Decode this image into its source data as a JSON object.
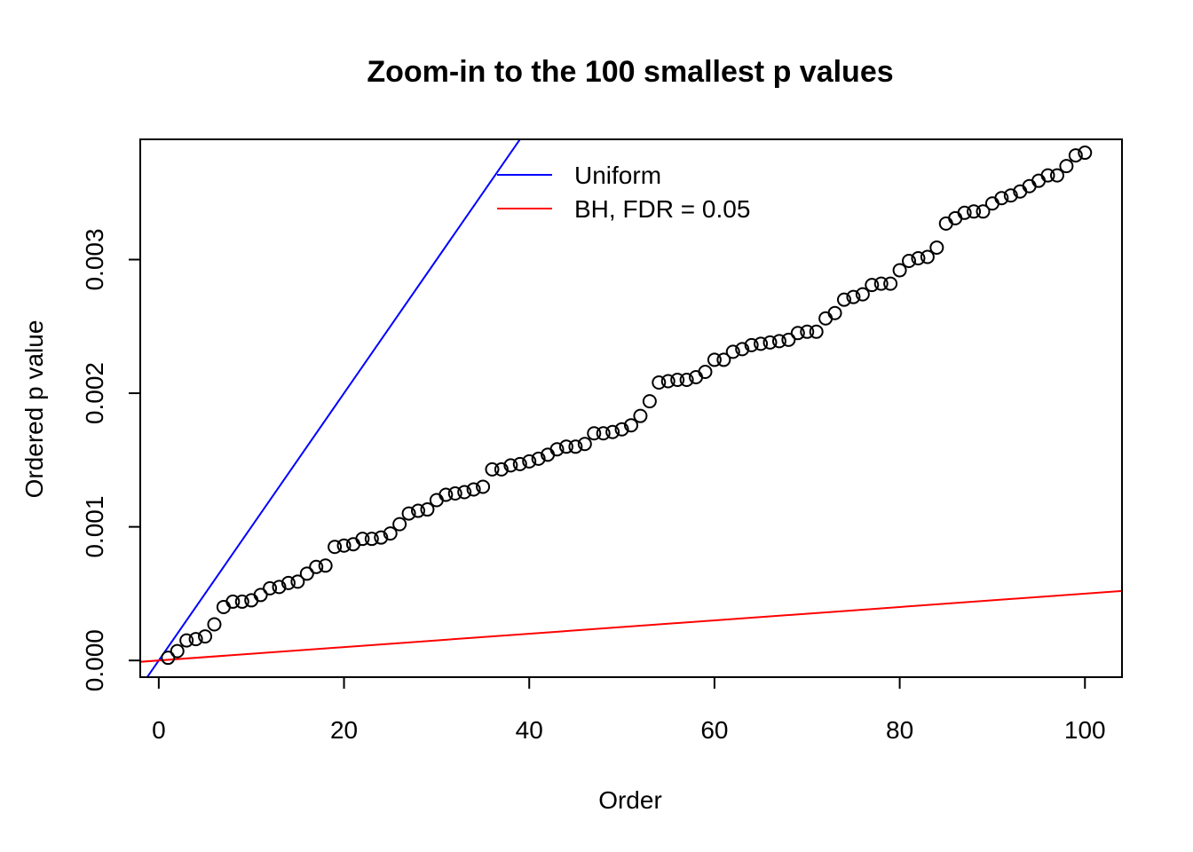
{
  "chart_data": {
    "type": "scatter",
    "title": "Zoom-in to the 100 smallest p values",
    "xlabel": "Order",
    "ylabel": "Ordered p value",
    "xlim": [
      -2,
      104
    ],
    "ylim": [
      -0.000125,
      0.0039
    ],
    "xticks": [
      0,
      20,
      40,
      60,
      80,
      100
    ],
    "xtick_labels": [
      "0",
      "20",
      "40",
      "60",
      "80",
      "100"
    ],
    "yticks": [
      0,
      0.001,
      0.002,
      0.003
    ],
    "ytick_labels": [
      "0.000",
      "0.001",
      "0.002",
      "0.003"
    ],
    "grid": false,
    "legend": {
      "position": "top-center",
      "entries": [
        {
          "label": "Uniform",
          "color": "#0000ff"
        },
        {
          "label": "BH, FDR = 0.05",
          "color": "#ff0000"
        }
      ]
    },
    "lines": [
      {
        "name": "Uniform",
        "color": "#0000ff",
        "slope": 0.0001,
        "intercept": 0
      },
      {
        "name": "BH, FDR = 0.05",
        "color": "#ff0000",
        "slope": 5e-06,
        "intercept": 0
      }
    ],
    "points": {
      "x": [
        1,
        2,
        3,
        4,
        5,
        6,
        7,
        8,
        9,
        10,
        11,
        12,
        13,
        14,
        15,
        16,
        17,
        18,
        19,
        20,
        21,
        22,
        23,
        24,
        25,
        26,
        27,
        28,
        29,
        30,
        31,
        32,
        33,
        34,
        35,
        36,
        37,
        38,
        39,
        40,
        41,
        42,
        43,
        44,
        45,
        46,
        47,
        48,
        49,
        50,
        51,
        52,
        53,
        54,
        55,
        56,
        57,
        58,
        59,
        60,
        61,
        62,
        63,
        64,
        65,
        66,
        67,
        68,
        69,
        70,
        71,
        72,
        73,
        74,
        75,
        76,
        77,
        78,
        79,
        80,
        81,
        82,
        83,
        84,
        85,
        86,
        87,
        88,
        89,
        90,
        91,
        92,
        93,
        94,
        95,
        96,
        97,
        98,
        99,
        100
      ],
      "y": [
        2e-05,
        7e-05,
        0.00015,
        0.00016,
        0.00018,
        0.00027,
        0.0004,
        0.00044,
        0.00044,
        0.00045,
        0.00049,
        0.00054,
        0.00055,
        0.00058,
        0.00059,
        0.00065,
        0.0007,
        0.00071,
        0.00085,
        0.00086,
        0.00087,
        0.00091,
        0.00091,
        0.00092,
        0.00095,
        0.00102,
        0.0011,
        0.00112,
        0.00113,
        0.0012,
        0.00124,
        0.00125,
        0.00126,
        0.00128,
        0.0013,
        0.00143,
        0.00143,
        0.00146,
        0.00147,
        0.00149,
        0.00151,
        0.00154,
        0.00158,
        0.0016,
        0.0016,
        0.00162,
        0.0017,
        0.0017,
        0.00171,
        0.00173,
        0.00176,
        0.00183,
        0.00194,
        0.00208,
        0.00209,
        0.0021,
        0.0021,
        0.00212,
        0.00216,
        0.00225,
        0.00225,
        0.00231,
        0.00233,
        0.00236,
        0.00237,
        0.00238,
        0.00239,
        0.0024,
        0.00245,
        0.00246,
        0.00246,
        0.00256,
        0.0026,
        0.0027,
        0.00272,
        0.00274,
        0.00281,
        0.00282,
        0.00282,
        0.00292,
        0.00299,
        0.00301,
        0.00302,
        0.00309,
        0.00327,
        0.00331,
        0.00335,
        0.00336,
        0.00336,
        0.00342,
        0.00346,
        0.00348,
        0.00351,
        0.00355,
        0.00359,
        0.00363,
        0.00363,
        0.0037,
        0.00378,
        0.0038
      ]
    }
  }
}
